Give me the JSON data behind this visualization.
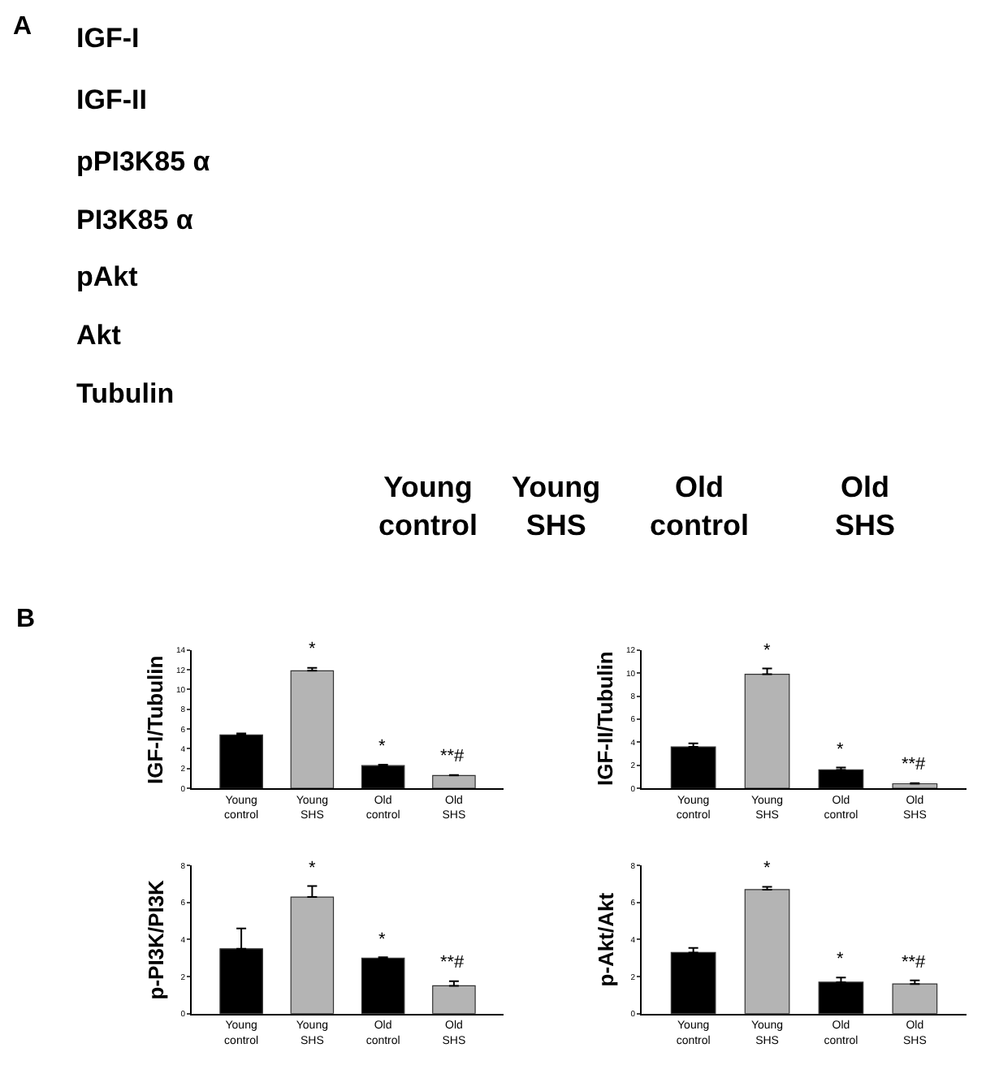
{
  "chart_data": [
    {
      "type": "other",
      "title": "A",
      "annotations": [
        "IGF-I",
        "IGF-II",
        "pPI3K85 α",
        "PI3K85 α",
        "pAkt",
        "Akt",
        "Tubulin",
        "Young\ncontrol",
        "Young\nSHS",
        "Old\ncontrol",
        "Old\nSHS"
      ]
    },
    {
      "type": "bar",
      "title": "B",
      "ylabel": "IGF-I/Tubulin",
      "categories": [
        "Young\ncontrol",
        "Young\nSHS",
        "Old\ncontrol",
        "Old\nSHS"
      ],
      "values": [
        5.4,
        11.9,
        2.3,
        1.3
      ],
      "errors": [
        [
          5.4,
          5.55
        ],
        [
          11.9,
          12.2
        ],
        [
          2.3,
          2.4
        ],
        [
          1.3,
          1.35
        ]
      ],
      "colors": [
        "#000000",
        "#b4b4b4",
        "#000000",
        "#b4b4b4"
      ],
      "ylim": [
        0,
        14
      ],
      "yticks": [
        0,
        2,
        4,
        6,
        8,
        10,
        12,
        14
      ],
      "annotations": [
        {
          "text": "*",
          "x": "Young\nSHS",
          "y": 12.2
        },
        {
          "text": "*",
          "x": "Old\ncontrol",
          "y": 2.4
        },
        {
          "text": "**#",
          "x": "Old\nSHS",
          "y": 1.35
        }
      ]
    },
    {
      "type": "bar",
      "ylabel": "IGF-II/Tubulin",
      "categories": [
        "Young\ncontrol",
        "Young\nSHS",
        "Old\ncontrol",
        "Old\nSHS"
      ],
      "values": [
        3.6,
        9.9,
        1.6,
        0.4
      ],
      "errors": [
        [
          3.6,
          3.9
        ],
        [
          9.9,
          10.4
        ],
        [
          1.6,
          1.8
        ],
        [
          0.4,
          0.45
        ]
      ],
      "colors": [
        "#000000",
        "#b4b4b4",
        "#000000",
        "#b4b4b4"
      ],
      "ylim": [
        0,
        12
      ],
      "yticks": [
        0,
        2,
        4,
        6,
        8,
        10,
        12
      ],
      "annotations": [
        {
          "text": "*",
          "x": "Young\nSHS",
          "y": 10.4
        },
        {
          "text": "*",
          "x": "Old\ncontrol",
          "y": 1.8
        },
        {
          "text": "**#",
          "x": "Old\nSHS",
          "y": 0.45
        }
      ]
    },
    {
      "type": "bar",
      "ylabel": "p-PI3K/PI3K",
      "categories": [
        "Young\ncontrol",
        "Young\nSHS",
        "Old\ncontrol",
        "Old\nSHS"
      ],
      "values": [
        3.5,
        6.3,
        3.0,
        1.5
      ],
      "errors": [
        [
          3.5,
          4.6
        ],
        [
          6.3,
          6.9
        ],
        [
          3.0,
          3.05
        ],
        [
          1.5,
          1.75
        ]
      ],
      "colors": [
        "#000000",
        "#b4b4b4",
        "#000000",
        "#b4b4b4"
      ],
      "ylim": [
        0,
        8
      ],
      "yticks": [
        0,
        2,
        4,
        6,
        8
      ],
      "annotations": [
        {
          "text": "*",
          "x": "Young\nSHS",
          "y": 6.9
        },
        {
          "text": "*",
          "x": "Old\ncontrol",
          "y": 3.05
        },
        {
          "text": "**#",
          "x": "Old\nSHS",
          "y": 1.75
        }
      ]
    },
    {
      "type": "bar",
      "ylabel": "p-Akt/Akt",
      "categories": [
        "Young\ncontrol",
        "Young\nSHS",
        "Old\ncontrol",
        "Old\nSHS"
      ],
      "values": [
        3.3,
        6.7,
        1.7,
        1.6
      ],
      "errors": [
        [
          3.3,
          3.55
        ],
        [
          6.7,
          6.85
        ],
        [
          1.7,
          1.95
        ],
        [
          1.6,
          1.8
        ]
      ],
      "colors": [
        "#000000",
        "#b4b4b4",
        "#000000",
        "#b4b4b4"
      ],
      "ylim": [
        0,
        8
      ],
      "yticks": [
        0,
        2,
        4,
        6,
        8
      ],
      "annotations": [
        {
          "text": "*",
          "x": "Young\nSHS",
          "y": 6.85
        },
        {
          "text": "*",
          "x": "Old\ncontrol",
          "y": 1.95
        },
        {
          "text": "**#",
          "x": "Old\nSHS",
          "y": 1.8
        }
      ]
    }
  ]
}
